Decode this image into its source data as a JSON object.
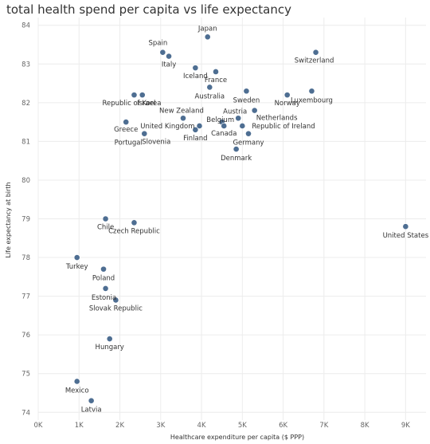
{
  "chart_data": {
    "type": "scatter",
    "title": "total health spend per capita vs life expectancy",
    "xlabel": "Healthcare expenditure per capita ($ PPP)",
    "ylabel": "Life expectancy at birth",
    "xlim": [
      0,
      9500
    ],
    "ylim": [
      73.8,
      84.2
    ],
    "x_ticks": [
      0,
      1000,
      2000,
      3000,
      4000,
      5000,
      6000,
      7000,
      8000,
      9000
    ],
    "x_tick_labels": [
      "0K",
      "1K",
      "2K",
      "3K",
      "4K",
      "5K",
      "6K",
      "7K",
      "8K",
      "9K"
    ],
    "y_ticks": [
      74,
      75,
      76,
      77,
      78,
      79,
      80,
      81,
      82,
      83,
      84
    ],
    "y_tick_labels": [
      "74",
      "75",
      "76",
      "77",
      "78",
      "79",
      "80",
      "81",
      "82",
      "83",
      "84"
    ],
    "grid": true,
    "point_color": "#4e6e92",
    "points": [
      {
        "label": "Japan",
        "x": 4150,
        "y": 83.7
      },
      {
        "label": "Spain",
        "x": 3050,
        "y": 83.3
      },
      {
        "label": "Switzerland",
        "x": 6800,
        "y": 83.3
      },
      {
        "label": "Italy",
        "x": 3200,
        "y": 83.2
      },
      {
        "label": "Iceland",
        "x": 3850,
        "y": 82.9
      },
      {
        "label": "France",
        "x": 4350,
        "y": 82.8
      },
      {
        "label": "Australia",
        "x": 4200,
        "y": 82.4
      },
      {
        "label": "Sweden",
        "x": 5100,
        "y": 82.3
      },
      {
        "label": "Luxembourg",
        "x": 6700,
        "y": 82.3
      },
      {
        "label": "Republic of Korea",
        "x": 2350,
        "y": 82.2
      },
      {
        "label": "Israel",
        "x": 2550,
        "y": 82.2
      },
      {
        "label": "Norway",
        "x": 6100,
        "y": 82.2
      },
      {
        "label": "Netherlands",
        "x": 5300,
        "y": 81.8
      },
      {
        "label": "Austria",
        "x": 4900,
        "y": 81.6
      },
      {
        "label": "New Zealand",
        "x": 3550,
        "y": 81.6
      },
      {
        "label": "Belgium",
        "x": 4500,
        "y": 81.5
      },
      {
        "label": "Greece",
        "x": 2150,
        "y": 81.5
      },
      {
        "label": "United Kingdom",
        "x": 3950,
        "y": 81.4
      },
      {
        "label": "Republic of Ireland",
        "x": 5000,
        "y": 81.4
      },
      {
        "label": "Canada",
        "x": 4550,
        "y": 81.4
      },
      {
        "label": "Finland",
        "x": 3850,
        "y": 81.3
      },
      {
        "label": "Germany",
        "x": 5150,
        "y": 81.2
      },
      {
        "label": "Slovenia",
        "x": 2600,
        "y": 81.2
      },
      {
        "label": "Portugal",
        "x": 2600,
        "y": 81.2
      },
      {
        "label": "Denmark",
        "x": 4850,
        "y": 80.8
      },
      {
        "label": "Chile",
        "x": 1650,
        "y": 79.0
      },
      {
        "label": "Czech Republic",
        "x": 2350,
        "y": 78.9
      },
      {
        "label": "United States",
        "x": 9000,
        "y": 78.8
      },
      {
        "label": "Turkey",
        "x": 950,
        "y": 78.0
      },
      {
        "label": "Poland",
        "x": 1600,
        "y": 77.7
      },
      {
        "label": "Estonia",
        "x": 1650,
        "y": 77.2
      },
      {
        "label": "Slovak Republic",
        "x": 1900,
        "y": 76.9
      },
      {
        "label": "Hungary",
        "x": 1750,
        "y": 75.9
      },
      {
        "label": "Mexico",
        "x": 950,
        "y": 74.8
      },
      {
        "label": "Latvia",
        "x": 1300,
        "y": 74.3
      }
    ]
  }
}
